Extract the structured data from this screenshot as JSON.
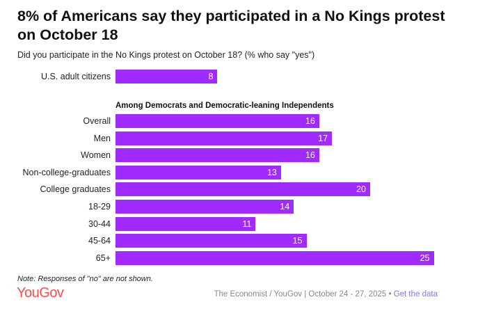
{
  "title": "8% of Americans say they participated in a No Kings protest on October 18",
  "subtitle": "Did you participate in the No Kings protest on October 18? (% who say \"yes\")",
  "chart_data": {
    "type": "bar",
    "orientation": "horizontal",
    "bar_color": "#a12bff",
    "xlim": [
      0,
      25
    ],
    "groups": [
      {
        "heading": "",
        "categories": [
          "U.S. adult citizens"
        ],
        "values": [
          8
        ]
      },
      {
        "heading": "Among Democrats and Democratic-leaning Independents",
        "categories": [
          "Overall",
          "Men",
          "Women",
          "Non-college-graduates",
          "College graduates",
          "18-29",
          "30-44",
          "45-64",
          "65+"
        ],
        "values": [
          16,
          17,
          16,
          13,
          20,
          14,
          11,
          15,
          25
        ]
      }
    ]
  },
  "note": "Note: Responses of \"no\" are not shown.",
  "logo": "YouGov",
  "source": "The Economist / YouGov | October 24 - 27, 2025 • ",
  "link": "Get the data"
}
